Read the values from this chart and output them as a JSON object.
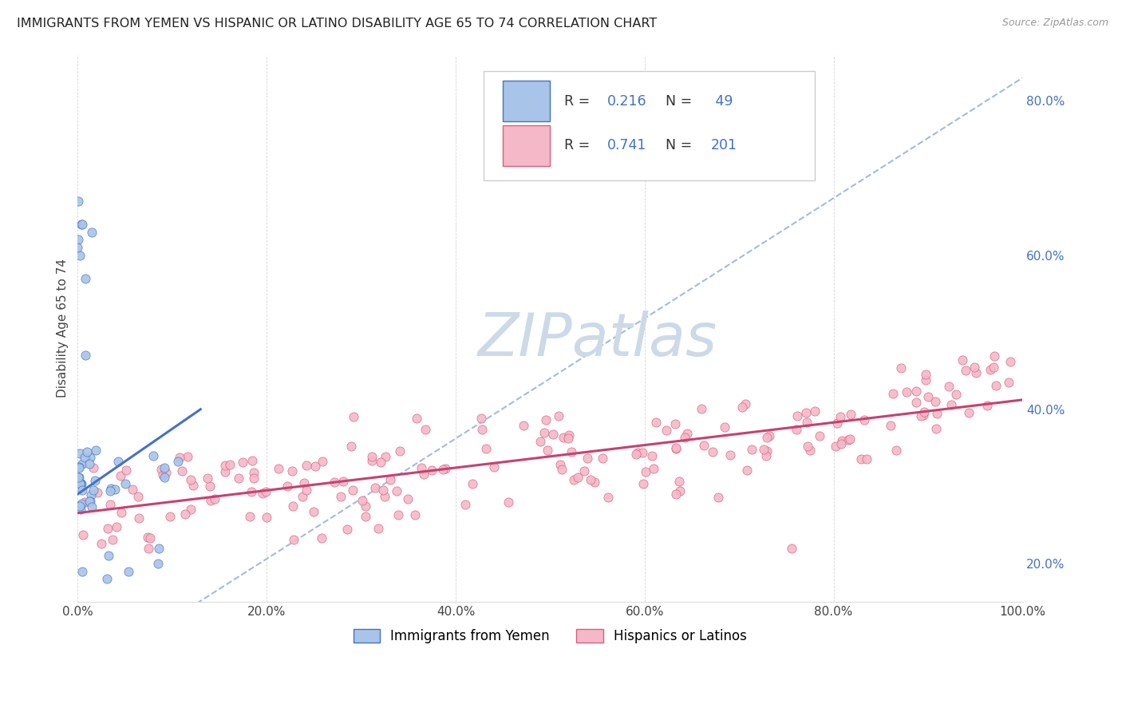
{
  "title": "IMMIGRANTS FROM YEMEN VS HISPANIC OR LATINO DISABILITY AGE 65 TO 74 CORRELATION CHART",
  "source": "Source: ZipAtlas.com",
  "ylabel": "Disability Age 65 to 74",
  "r_yemen": 0.216,
  "n_yemen": 49,
  "r_hispanic": 0.741,
  "n_hispanic": 201,
  "xlim": [
    0.0,
    1.0
  ],
  "ylim": [
    0.15,
    0.86
  ],
  "right_yticks": [
    0.2,
    0.4,
    0.6,
    0.8
  ],
  "right_ytick_labels": [
    "20.0%",
    "40.0%",
    "60.0%",
    "80.0%"
  ],
  "xtick_labels": [
    "0.0%",
    "20.0%",
    "40.0%",
    "60.0%",
    "80.0%",
    "100.0%"
  ],
  "xtick_positions": [
    0.0,
    0.2,
    0.4,
    0.6,
    0.8,
    1.0
  ],
  "color_yemen_fill": "#a8c4e8",
  "color_yemen_edge": "#4472c4",
  "color_hispanic_fill": "#f4b8c8",
  "color_hispanic_edge": "#d95f7f",
  "color_dashed": "#9ab4d4",
  "color_reg_yemen": "#4472c4",
  "color_reg_hispanic": "#c94070",
  "watermark_color": "#ccd9e8",
  "background_color": "#ffffff",
  "legend_text_color": "#333333",
  "legend_value_color": "#4472c4",
  "legend_n_color_hispanic": "#4472c4",
  "right_axis_color": "#4472c4"
}
